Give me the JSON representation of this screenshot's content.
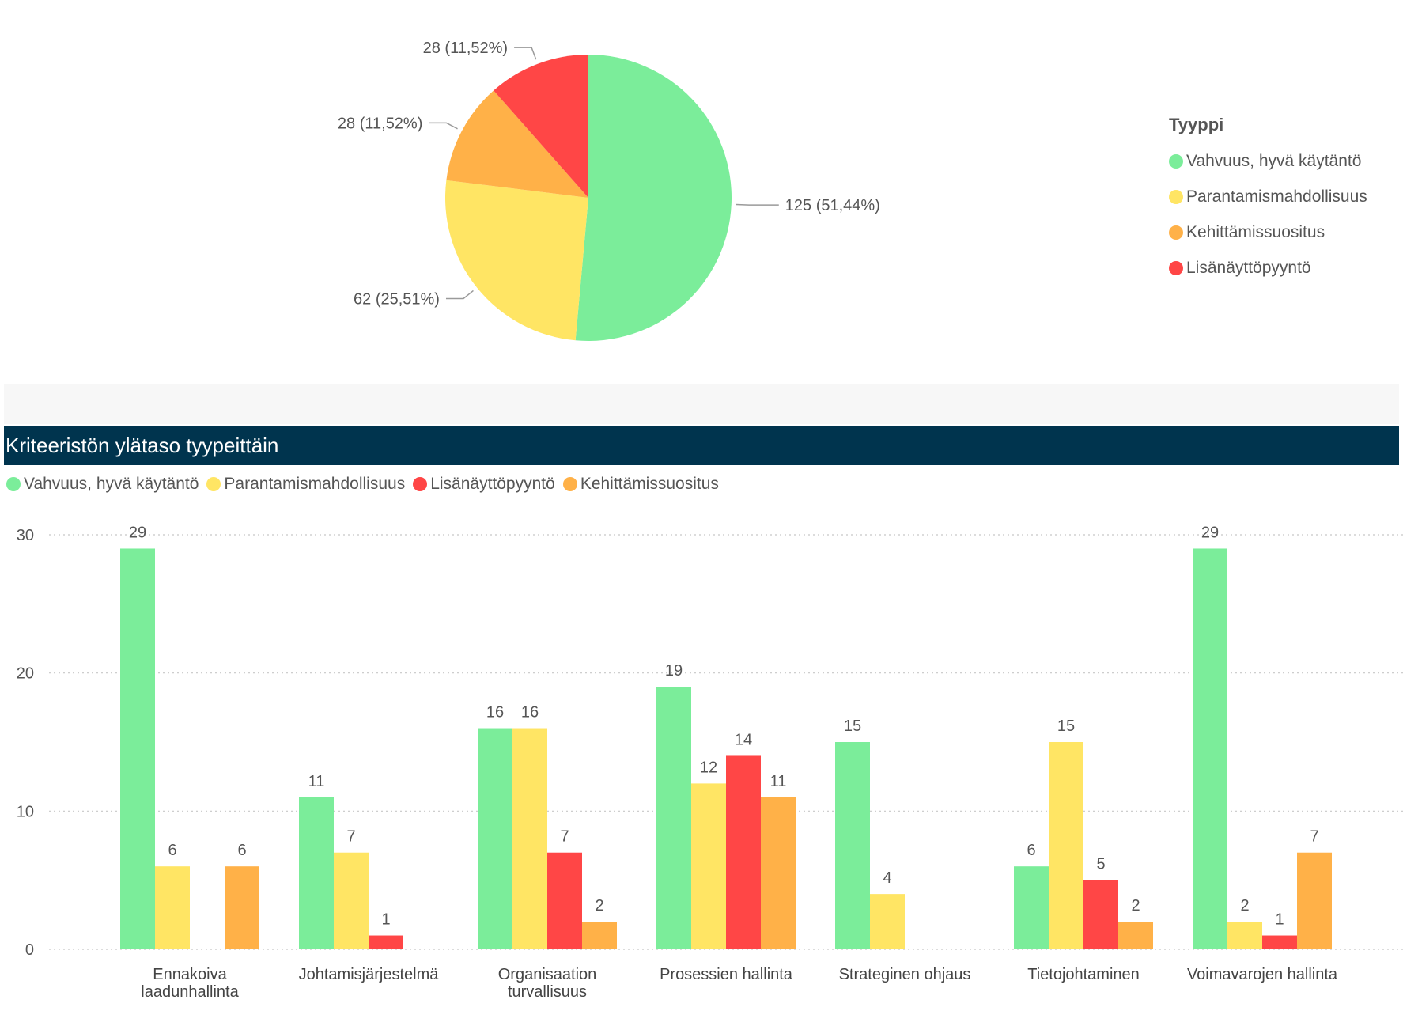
{
  "colors": {
    "green": "#7bed9a",
    "yellow": "#ffe564",
    "orange": "#ffb148",
    "red": "#ff4646",
    "header_bg": "#00344e"
  },
  "pie_legend": {
    "title": "Tyyppi",
    "items": [
      {
        "label": "Vahvuus, hyvä käytäntö",
        "color": "#7bed9a"
      },
      {
        "label": "Parantamismahdollisuus",
        "color": "#ffe564"
      },
      {
        "label": "Kehittämissuositus",
        "color": "#ffb148"
      },
      {
        "label": "Lisänäyttöpyyntö",
        "color": "#ff4646"
      }
    ]
  },
  "bar_section": {
    "title": "Kriteeristön ylätaso tyypeittäin",
    "legend": [
      {
        "label": "Vahvuus, hyvä käytäntö",
        "color": "#7bed9a"
      },
      {
        "label": "Parantamismahdollisuus",
        "color": "#ffe564"
      },
      {
        "label": "Lisänäyttöpyyntö",
        "color": "#ff4646"
      },
      {
        "label": "Kehittämissuositus",
        "color": "#ffb148"
      }
    ]
  },
  "chart_data": [
    {
      "type": "pie",
      "legend_title": "Tyyppi",
      "legend_placement": "right",
      "slices": [
        {
          "name": "Vahvuus, hyvä käytäntö",
          "value": 125,
          "label": "125 (51,44%)",
          "color": "#7bed9a"
        },
        {
          "name": "Parantamismahdollisuus",
          "value": 62,
          "label": "62 (25,51%)",
          "color": "#ffe564"
        },
        {
          "name": "Kehittämissuositus",
          "value": 28,
          "label": "28 (11,52%)",
          "color": "#ffb148"
        },
        {
          "name": "Lisänäyttöpyyntö",
          "value": 28,
          "label": "28 (11,52%)",
          "color": "#ff4646"
        }
      ]
    },
    {
      "type": "bar",
      "title": "Kriteeristön ylätaso tyypeittäin",
      "legend_placement": "top-left",
      "grid": true,
      "ylim": [
        0,
        30
      ],
      "yticks": [
        0,
        10,
        20,
        30
      ],
      "categories": [
        [
          "Ennakoiva",
          "laadunhallinta"
        ],
        [
          "Johtamisjärjestelmä"
        ],
        [
          "Organisaation",
          "turvallisuus"
        ],
        [
          "Prosessien hallinta"
        ],
        [
          "Strateginen ohjaus"
        ],
        [
          "Tietojohtaminen"
        ],
        [
          "Voimavarojen hallinta"
        ]
      ],
      "series": [
        {
          "name": "Vahvuus, hyvä käytäntö",
          "color": "#7bed9a",
          "values": [
            29,
            11,
            16,
            19,
            15,
            6,
            29
          ]
        },
        {
          "name": "Parantamismahdollisuus",
          "color": "#ffe564",
          "values": [
            6,
            7,
            16,
            12,
            4,
            15,
            2
          ]
        },
        {
          "name": "Lisänäyttöpyyntö",
          "color": "#ff4646",
          "values": [
            null,
            1,
            7,
            14,
            null,
            5,
            1
          ]
        },
        {
          "name": "Kehittämissuositus",
          "color": "#ffb148",
          "values": [
            6,
            null,
            2,
            11,
            null,
            2,
            7
          ]
        }
      ]
    }
  ]
}
